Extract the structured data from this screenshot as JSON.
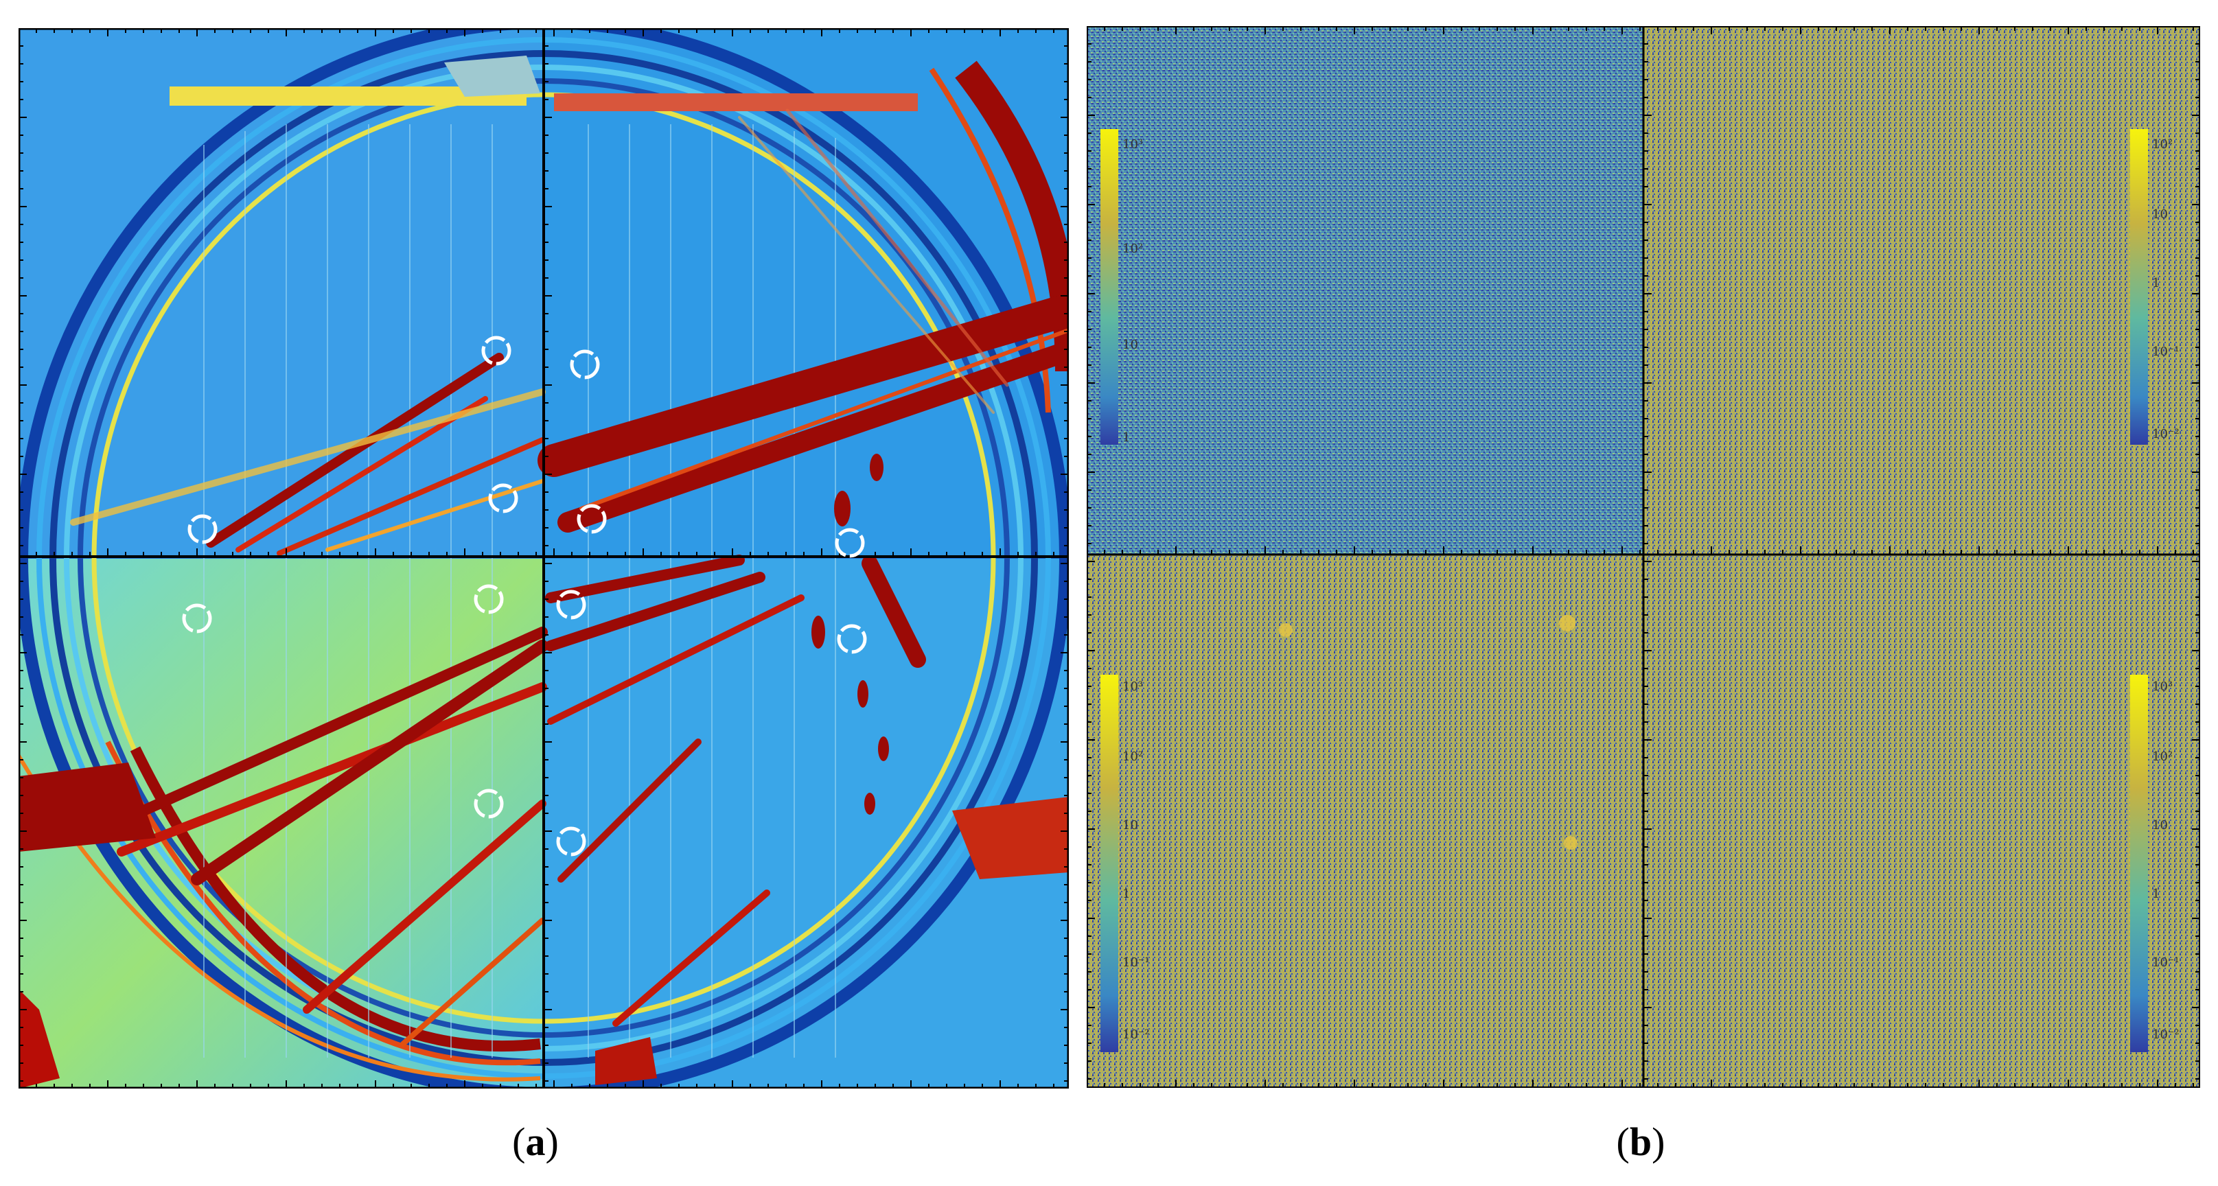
{
  "figure": {
    "panels": [
      {
        "label": "a",
        "circle_markers": 12,
        "colormap": [
          "#1e3f9e",
          "#1f7fe0",
          "#38c0e8",
          "#8ee07a",
          "#f3e24a",
          "#ee7a1f",
          "#9b0a06"
        ]
      },
      {
        "label": "b",
        "colormap": [
          "#2f3da3",
          "#3a88c4",
          "#5fb9a0",
          "#c7b341",
          "#f6f30d"
        ],
        "quadrants": [
          {
            "name": "top-left",
            "colorbar_ticks": [
              "10³",
              "10²",
              "10",
              "1"
            ]
          },
          {
            "name": "top-right",
            "colorbar_ticks": [
              "10²",
              "10",
              "1",
              "10⁻¹",
              "10⁻²"
            ]
          },
          {
            "name": "bottom-left",
            "colorbar_ticks": [
              "10³",
              "10²",
              "10",
              "1",
              "10⁻¹",
              "10⁻²"
            ]
          },
          {
            "name": "bottom-right",
            "colorbar_ticks": [
              "10³",
              "10²",
              "10",
              "1",
              "10⁻¹",
              "10⁻²"
            ]
          }
        ]
      }
    ]
  },
  "captions": {
    "a_open": "(",
    "a_label": "a",
    "a_close": ")",
    "b_open": "(",
    "b_label": "b",
    "b_close": ")"
  }
}
